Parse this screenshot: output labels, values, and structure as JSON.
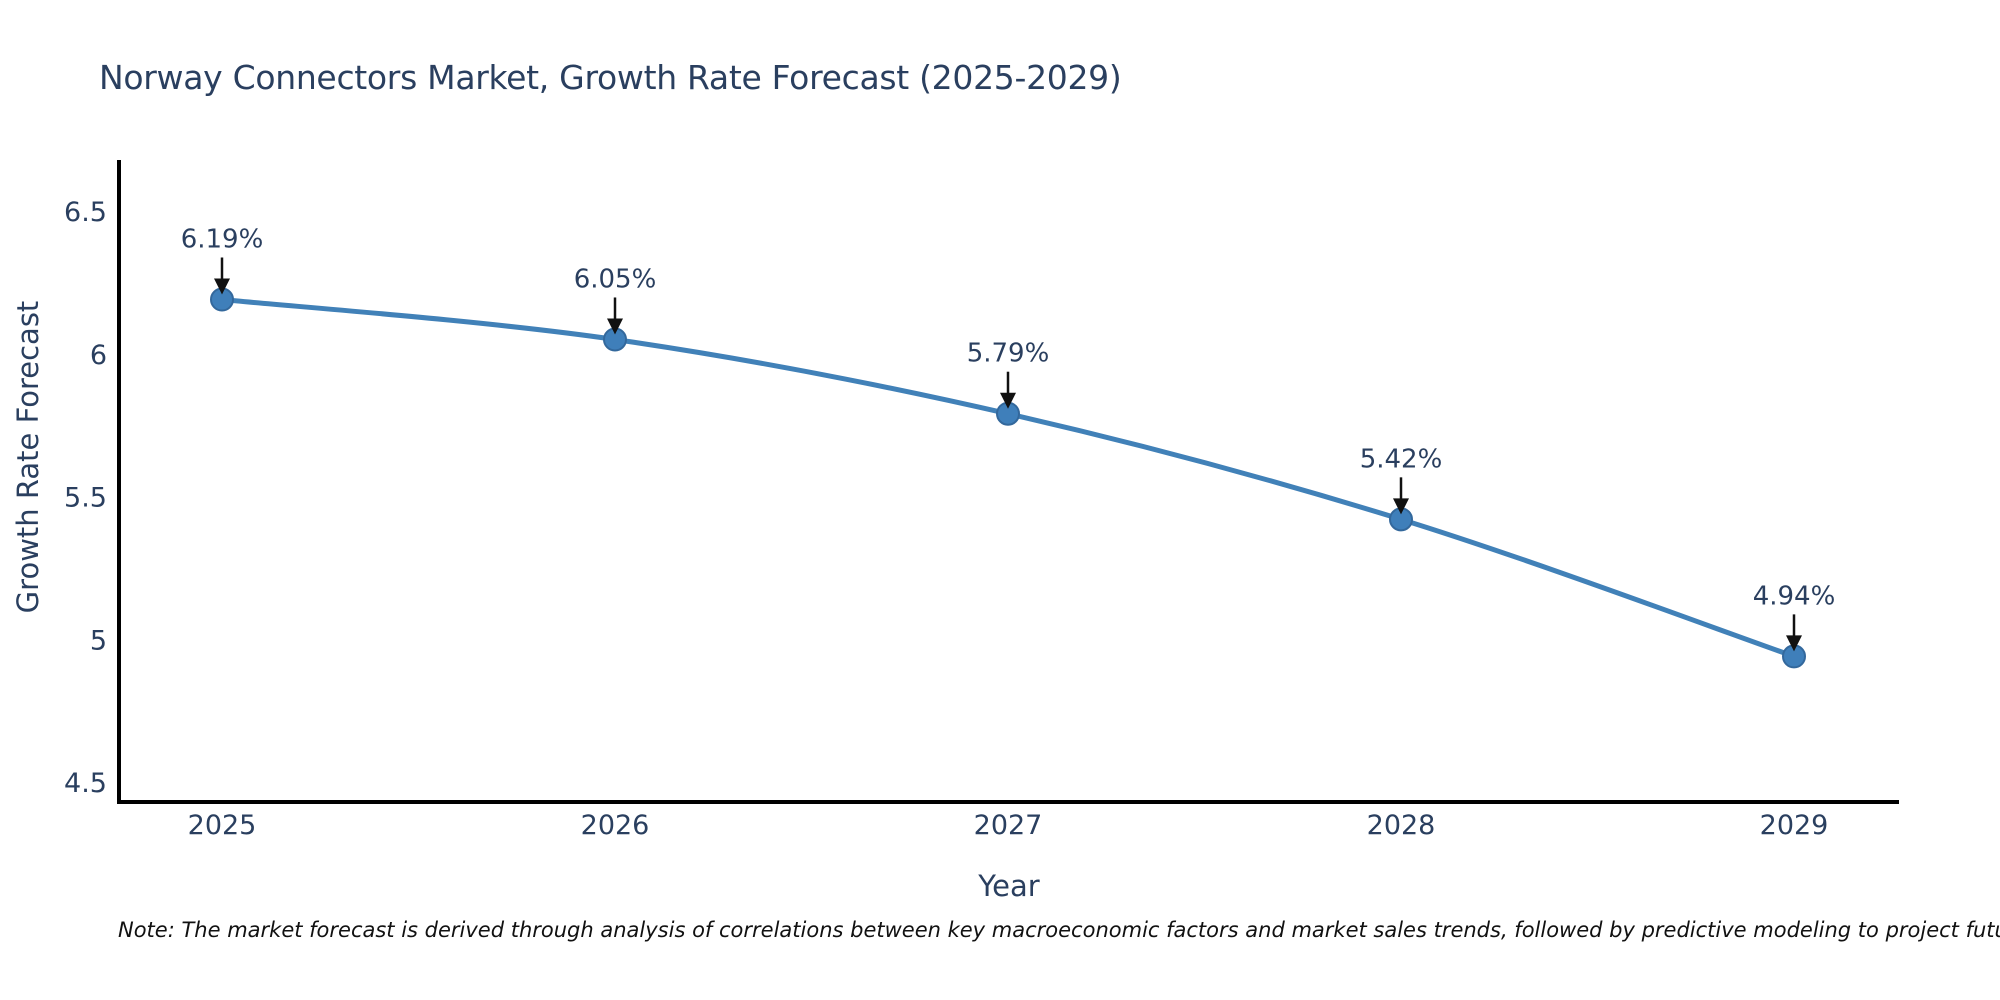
{
  "page": {
    "note": "Note: The market forecast is derived through analysis of correlations between key macroeconomic factors and market sales trends, followed by predictive modeling to project future sales"
  },
  "chart_data": {
    "type": "line",
    "title": "Norway Connectors Market, Growth Rate Forecast (2025-2029)",
    "xlabel": "Year",
    "ylabel": "Growth Rate Forecast",
    "categories": [
      "2025",
      "2026",
      "2027",
      "2028",
      "2029"
    ],
    "series": [
      {
        "name": "Growth Rate Forecast",
        "values": [
          6.19,
          6.05,
          5.79,
          5.42,
          4.94
        ]
      }
    ],
    "point_labels": [
      "6.19%",
      "6.05%",
      "5.79%",
      "5.42%",
      "4.94%"
    ],
    "ytick_values": [
      6.5,
      6.0,
      5.5,
      5.0,
      4.5
    ],
    "ytick_labels": [
      "6.5",
      "6",
      "5.5",
      "5",
      "4.5"
    ],
    "ylim": [
      4.43,
      6.68
    ],
    "grid": false,
    "legend": false,
    "colors": {
      "line": "#4181b8",
      "marker_fill": "#3f7fba",
      "marker_stroke": "#33689c",
      "axis": "#000000",
      "text": "#2a3f5f",
      "arrow": "#111111"
    }
  }
}
